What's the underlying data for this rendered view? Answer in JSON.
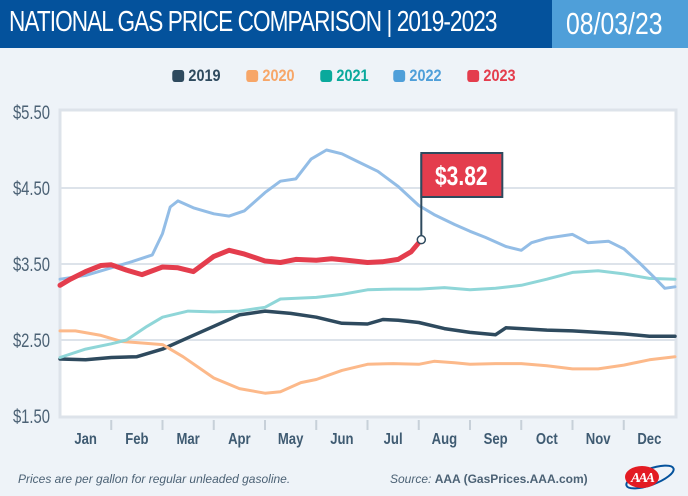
{
  "header": {
    "title": "NATIONAL GAS PRICE COMPARISON | 2019-2023",
    "date": "08/03/23"
  },
  "colors": {
    "header_bg": "#04529c",
    "date_bg": "#4f9fd9",
    "2019": "#2e4a5e",
    "2020": "#fcb98a",
    "2021": "#8fd6d8",
    "2022": "#93bde6",
    "2023": "#e43d4d",
    "legend_2020": "#f7a668",
    "legend_2021": "#0aa99c",
    "legend_2022": "#4f9fd9",
    "legend_2023": "#e43d4d"
  },
  "footer": {
    "note": "Prices are per gallon for regular unleaded gasoline.",
    "source_label": "Source:",
    "source_value": "AAA (GasPrices.AAA.com)",
    "logo": "aaa-logo"
  },
  "chart_data": {
    "type": "line",
    "title": "NATIONAL GAS PRICE COMPARISON | 2019-2023",
    "xlabel": "",
    "ylabel": "",
    "x_unit": "month (0 = Jan 1, 12 = Dec 31)",
    "categories": [
      "Jan",
      "Feb",
      "Mar",
      "Apr",
      "May",
      "Jun",
      "Jul",
      "Aug",
      "Sep",
      "Oct",
      "Nov",
      "Dec"
    ],
    "yticks": [
      "$5.50",
      "$4.50",
      "$3.50",
      "$2.50",
      "$1.50"
    ],
    "ylim": [
      1.5,
      5.5
    ],
    "grid": true,
    "legend_position": "top-center",
    "callout": {
      "series": "2023",
      "label": "$3.82",
      "x": 7.05,
      "y": 3.82
    },
    "series": [
      {
        "name": "2019",
        "x": [
          0,
          0.5,
          1,
          1.5,
          2,
          2.5,
          3,
          3.5,
          4,
          4.5,
          5,
          5.5,
          6,
          6.3,
          6.6,
          7,
          7.5,
          8,
          8.5,
          8.7,
          9,
          9.5,
          10,
          10.5,
          11,
          11.5,
          12
        ],
        "values": [
          2.25,
          2.24,
          2.27,
          2.28,
          2.38,
          2.53,
          2.68,
          2.83,
          2.88,
          2.85,
          2.8,
          2.72,
          2.71,
          2.77,
          2.76,
          2.73,
          2.65,
          2.6,
          2.57,
          2.66,
          2.65,
          2.63,
          2.62,
          2.6,
          2.58,
          2.55,
          2.55
        ]
      },
      {
        "name": "2020",
        "x": [
          0,
          0.3,
          0.8,
          1.2,
          1.6,
          2,
          2.4,
          3,
          3.5,
          4,
          4.3,
          4.7,
          5,
          5.5,
          6,
          6.5,
          7,
          7.3,
          7.7,
          8,
          8.5,
          9,
          9.5,
          10,
          10.5,
          11,
          11.5,
          12
        ],
        "values": [
          2.62,
          2.62,
          2.56,
          2.48,
          2.46,
          2.44,
          2.28,
          2.0,
          1.86,
          1.8,
          1.82,
          1.94,
          1.98,
          2.1,
          2.18,
          2.19,
          2.18,
          2.22,
          2.2,
          2.18,
          2.19,
          2.19,
          2.16,
          2.12,
          2.12,
          2.17,
          2.24,
          2.28
        ]
      },
      {
        "name": "2021",
        "x": [
          0,
          0.5,
          1,
          1.3,
          1.7,
          2,
          2.5,
          3,
          3.5,
          4,
          4.3,
          5,
          5.5,
          6,
          6.5,
          7,
          7.5,
          8,
          8.5,
          9,
          9.5,
          10,
          10.5,
          11,
          11.5,
          12
        ],
        "values": [
          2.27,
          2.38,
          2.45,
          2.5,
          2.68,
          2.8,
          2.88,
          2.87,
          2.88,
          2.93,
          3.04,
          3.06,
          3.1,
          3.16,
          3.17,
          3.17,
          3.19,
          3.16,
          3.18,
          3.22,
          3.3,
          3.39,
          3.41,
          3.37,
          3.31,
          3.3
        ]
      },
      {
        "name": "2022",
        "x": [
          0,
          0.5,
          1,
          1.4,
          1.8,
          2,
          2.15,
          2.3,
          2.6,
          3,
          3.3,
          3.6,
          4,
          4.3,
          4.6,
          4.9,
          5.2,
          5.5,
          5.8,
          6.2,
          6.6,
          7,
          7.3,
          7.7,
          8,
          8.3,
          8.7,
          9,
          9.2,
          9.5,
          10,
          10.3,
          10.7,
          11,
          11.3,
          11.6,
          11.8,
          12
        ],
        "values": [
          3.3,
          3.35,
          3.45,
          3.53,
          3.62,
          3.9,
          4.25,
          4.33,
          4.24,
          4.16,
          4.13,
          4.2,
          4.44,
          4.59,
          4.62,
          4.88,
          5.0,
          4.95,
          4.85,
          4.72,
          4.52,
          4.27,
          4.15,
          4.02,
          3.93,
          3.85,
          3.73,
          3.68,
          3.78,
          3.84,
          3.89,
          3.78,
          3.8,
          3.7,
          3.52,
          3.32,
          3.18,
          3.2
        ]
      },
      {
        "name": "2023",
        "x": [
          0,
          0.2,
          0.5,
          0.8,
          1,
          1.3,
          1.6,
          2,
          2.3,
          2.6,
          3,
          3.3,
          3.6,
          4,
          4.3,
          4.6,
          5,
          5.3,
          5.6,
          6,
          6.3,
          6.6,
          6.85,
          7.05
        ],
        "values": [
          3.22,
          3.3,
          3.4,
          3.48,
          3.49,
          3.42,
          3.36,
          3.46,
          3.45,
          3.4,
          3.6,
          3.68,
          3.63,
          3.54,
          3.52,
          3.56,
          3.55,
          3.57,
          3.55,
          3.52,
          3.53,
          3.56,
          3.66,
          3.82
        ]
      }
    ]
  }
}
